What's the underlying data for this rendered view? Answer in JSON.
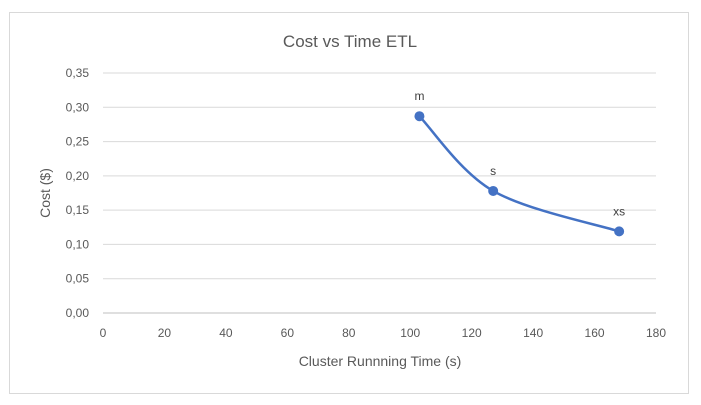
{
  "chart_data": {
    "type": "scatter",
    "title": "Cost vs Time ETL",
    "xlabel": "Cluster Runnning Time (s)",
    "ylabel": "Cost ($)",
    "xlim": [
      0,
      180
    ],
    "ylim": [
      0,
      0.35
    ],
    "x_ticks": [
      "0",
      "20",
      "40",
      "60",
      "80",
      "100",
      "120",
      "140",
      "160",
      "180"
    ],
    "y_ticks": [
      "0,00",
      "0,05",
      "0,10",
      "0,15",
      "0,20",
      "0,25",
      "0,30",
      "0,35"
    ],
    "grid": true,
    "smoothed_line": true,
    "series": [
      {
        "color": "#4472c4",
        "points": [
          {
            "x": 103,
            "y": 0.287,
            "label": "m"
          },
          {
            "x": 127,
            "y": 0.178,
            "label": "s"
          },
          {
            "x": 168,
            "y": 0.119,
            "label": "xs"
          }
        ]
      }
    ]
  }
}
